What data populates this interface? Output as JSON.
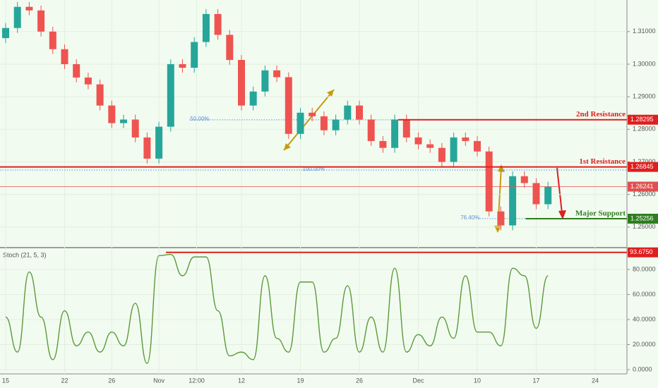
{
  "chart_data": {
    "type": "candlestick",
    "x": [
      0,
      1,
      2,
      3,
      4,
      5,
      6,
      7,
      8,
      9,
      10,
      11,
      12,
      13,
      14,
      15,
      16,
      17,
      18,
      19,
      20,
      21,
      22,
      23,
      24,
      25,
      26,
      27,
      28,
      29,
      30,
      31,
      32,
      33,
      34,
      35,
      36,
      37,
      38,
      39,
      40,
      41,
      42,
      43,
      44,
      45,
      46
    ],
    "open": [
      1.308,
      1.3111,
      1.3176,
      1.3165,
      1.31,
      1.3046,
      1.3,
      1.2959,
      1.2938,
      1.2873,
      1.2819,
      1.283,
      1.2775,
      1.271,
      1.2808,
      1.3,
      1.2989,
      1.3068,
      1.3154,
      1.309,
      1.3013,
      1.2873,
      1.2916,
      1.2981,
      1.296,
      1.2786,
      1.2851,
      1.284,
      1.2797,
      1.283,
      1.2873,
      1.283,
      1.2764,
      1.2743,
      1.283,
      1.2775,
      1.2754,
      1.2743,
      1.27,
      1.2775,
      1.2764,
      1.2732,
      1.2548,
      1.2505,
      1.2656,
      1.2635,
      1.257
    ],
    "high": [
      1.3126,
      1.3191,
      1.3191,
      1.318,
      1.3115,
      1.3061,
      1.3015,
      1.2974,
      1.2953,
      1.2888,
      1.2845,
      1.2845,
      1.279,
      1.2823,
      1.3015,
      1.3015,
      1.3083,
      1.3169,
      1.3169,
      1.3105,
      1.3028,
      1.2931,
      1.2996,
      1.2996,
      1.2975,
      1.2866,
      1.2866,
      1.2855,
      1.2845,
      1.2888,
      1.2888,
      1.2845,
      1.2779,
      1.2845,
      1.2845,
      1.279,
      1.2769,
      1.2758,
      1.279,
      1.279,
      1.2779,
      1.2747,
      1.2563,
      1.2671,
      1.2671,
      1.265,
      1.2639
    ],
    "low": [
      1.3065,
      1.3096,
      1.315,
      1.3085,
      1.3031,
      1.2985,
      1.2944,
      1.2923,
      1.2858,
      1.2804,
      1.2804,
      1.276,
      1.2695,
      1.2695,
      1.2793,
      1.2974,
      1.2974,
      1.3053,
      1.3075,
      1.2998,
      1.2858,
      1.2858,
      1.2901,
      1.2945,
      1.2771,
      1.2771,
      1.2825,
      1.2782,
      1.2782,
      1.2815,
      1.2815,
      1.2749,
      1.2728,
      1.2728,
      1.276,
      1.2739,
      1.2728,
      1.2685,
      1.2685,
      1.2749,
      1.2717,
      1.2533,
      1.249,
      1.249,
      1.262,
      1.2555,
      1.2555
    ],
    "close": [
      1.3111,
      1.3176,
      1.3165,
      1.31,
      1.3046,
      1.3,
      1.2959,
      1.2938,
      1.2873,
      1.2819,
      1.283,
      1.2775,
      1.271,
      1.2808,
      1.3,
      1.2989,
      1.3068,
      1.3154,
      1.309,
      1.3013,
      1.2873,
      1.2916,
      1.2981,
      1.296,
      1.2786,
      1.2851,
      1.284,
      1.2797,
      1.283,
      1.2873,
      1.283,
      1.2764,
      1.2743,
      1.283,
      1.2775,
      1.2754,
      1.2743,
      1.27,
      1.2775,
      1.2764,
      1.2732,
      1.2548,
      1.2505,
      1.2656,
      1.2635,
      1.257,
      1.2624
    ],
    "up_color": "#26a69a",
    "down_color": "#ef5350",
    "xlim": [
      -0.479,
      52.695
    ],
    "xticks": [
      {
        "value": 0,
        "label": "15"
      },
      {
        "value": 5,
        "label": "22"
      },
      {
        "value": 9,
        "label": "26"
      },
      {
        "value": 13,
        "label": "Nov"
      },
      {
        "value": 16.2,
        "label": "12:00"
      },
      {
        "value": 20,
        "label": "12"
      },
      {
        "value": 25,
        "label": "19"
      },
      {
        "value": 30,
        "label": "26"
      },
      {
        "value": 35,
        "label": "Dec"
      },
      {
        "value": 40,
        "label": "10"
      },
      {
        "value": 45,
        "label": "17"
      },
      {
        "value": 50,
        "label": "24"
      }
    ],
    "ylim": [
      1.2439,
      1.3197
    ],
    "yticks": [
      {
        "value": 1.25,
        "label": "1.25000"
      },
      {
        "value": 1.26,
        "label": "1.26000"
      },
      {
        "value": 1.27,
        "label": "1.27000"
      },
      {
        "value": 1.28,
        "label": "1.28000"
      },
      {
        "value": 1.29,
        "label": "1.29000"
      },
      {
        "value": 1.3,
        "label": "1.30000"
      },
      {
        "value": 1.31,
        "label": "1.31000"
      }
    ],
    "levels": [
      {
        "label": "2nd Resistance",
        "value": 1.28295,
        "value_label": "1.28295",
        "color": "#e01e1e",
        "from": 33.3
      },
      {
        "label": "1st Resistance",
        "value": 1.26845,
        "value_label": "1.26845",
        "color": "#e01e1e",
        "from": -0.479
      },
      {
        "label": "Major Support",
        "value": 1.25256,
        "value_label": "1.25256",
        "color": "#2e7d1e",
        "from": 44.1
      }
    ],
    "last_price": {
      "value": 1.26241,
      "value_label": "1.26241",
      "color": "#e05050"
    },
    "fibs": [
      {
        "label": "50.00%",
        "value": 1.2829,
        "from": 15.6
      },
      {
        "label": "100.00%",
        "value": 1.2675,
        "from": -0.479
      },
      {
        "label": "76.40%",
        "value": 1.2526,
        "from": 40.2
      }
    ],
    "stochastic": {
      "name": "Stoch (21, 5, 3)",
      "color": "#5a9a3a",
      "values": [
        42,
        14,
        78,
        42,
        8,
        47,
        19,
        30,
        14,
        30,
        19,
        53,
        5,
        91,
        92,
        75,
        90,
        90,
        47,
        11,
        14,
        8,
        75,
        25,
        14,
        70,
        70,
        14,
        25,
        67,
        14,
        42,
        14,
        81,
        14,
        28,
        19,
        42,
        25,
        75,
        30,
        30,
        19,
        81,
        75,
        33,
        75
      ],
      "ylim": [
        -3.4,
        96.9
      ],
      "yticks": [
        {
          "value": 0,
          "label": "0.0000"
        },
        {
          "value": 20,
          "label": "20.0000"
        },
        {
          "value": 40,
          "label": "40.0000"
        },
        {
          "value": 60,
          "label": "60.0000"
        },
        {
          "value": 80,
          "label": "80.0000"
        }
      ],
      "level": {
        "value": 93.675,
        "value_label": "93.6750",
        "from": 13.6
      }
    }
  }
}
